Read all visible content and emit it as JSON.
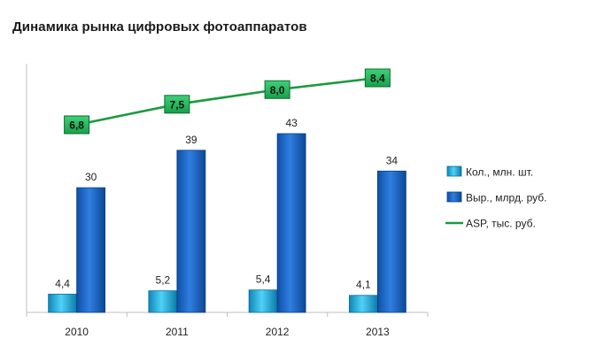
{
  "chart_data": {
    "type": "bar",
    "title": "Динамика рынка цифровых фотоаппаратов",
    "categories": [
      "2010",
      "2011",
      "2012",
      "2013"
    ],
    "series": [
      {
        "name": "Кол., млн. шт.",
        "kind": "bar",
        "color": "#1fb6e6",
        "values": [
          4.4,
          5.2,
          5.4,
          4.1
        ],
        "labels": [
          "4,4",
          "5,2",
          "5,4",
          "4,1"
        ]
      },
      {
        "name": "Выр., млрд. руб.",
        "kind": "bar",
        "color": "#1a6ad0",
        "values": [
          30,
          39,
          43,
          34
        ],
        "labels": [
          "30",
          "39",
          "43",
          "34"
        ]
      },
      {
        "name": "ASP, тыс. руб.",
        "kind": "line",
        "color": "#1a9a40",
        "values": [
          6.8,
          7.5,
          8.0,
          8.4
        ],
        "labels": [
          "6,8",
          "7,5",
          "8,0",
          "8,4"
        ]
      }
    ],
    "ylim": [
      0,
      43
    ],
    "line_ylim": [
      6.0,
      8.6
    ],
    "grid": false,
    "legend": "right"
  }
}
